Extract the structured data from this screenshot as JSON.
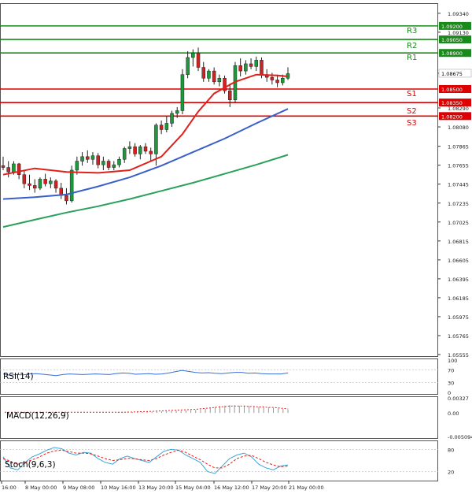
{
  "chart_data": [
    {
      "type": "candlestick",
      "title": "",
      "ylim": [
        1.05555,
        1.094
      ],
      "y_ticks": [
        "1.09340",
        "1.09130",
        "1.08675",
        "1.08290",
        "1.08080",
        "1.07865",
        "1.07655",
        "1.07445",
        "1.07235",
        "1.07025",
        "1.06815",
        "1.06605",
        "1.06395",
        "1.06185",
        "1.05975",
        "1.05765",
        "1.05555"
      ],
      "x_ticks": [
        "16:00",
        "8 May 00:00",
        "9 May 08:00",
        "10 May 16:00",
        "13 May 20:00",
        "15 May 04:00",
        "16 May 12:00",
        "17 May 20:00",
        "21 May 00:00"
      ],
      "levels": [
        {
          "name": "R3",
          "value": 1.092,
          "label": "1.09200",
          "color": "#1a8a1a"
        },
        {
          "name": "R2",
          "value": 1.0905,
          "label": "1.09050",
          "color": "#1a8a1a"
        },
        {
          "name": "R1",
          "value": 1.089,
          "label": "1.08900",
          "color": "#1a8a1a"
        },
        {
          "name": "S1",
          "value": 1.085,
          "label": "1.08500",
          "color": "#dd0000"
        },
        {
          "name": "S2",
          "value": 1.0835,
          "label": "1.08350",
          "color": "#dd0000"
        },
        {
          "name": "S3",
          "value": 1.082,
          "label": "1.08200",
          "color": "#dd0000"
        }
      ],
      "current_price": "1.08675",
      "candles": [
        {
          "o": 1.0765,
          "h": 1.0775,
          "l": 1.076,
          "c": 1.0763
        },
        {
          "o": 1.0763,
          "h": 1.077,
          "l": 1.0752,
          "c": 1.0758
        },
        {
          "o": 1.0758,
          "h": 1.077,
          "l": 1.0755,
          "c": 1.0767
        },
        {
          "o": 1.0767,
          "h": 1.0768,
          "l": 1.075,
          "c": 1.0755
        },
        {
          "o": 1.0755,
          "h": 1.076,
          "l": 1.074,
          "c": 1.0745
        },
        {
          "o": 1.0745,
          "h": 1.0755,
          "l": 1.0738,
          "c": 1.0743
        },
        {
          "o": 1.0743,
          "h": 1.075,
          "l": 1.0735,
          "c": 1.074
        },
        {
          "o": 1.074,
          "h": 1.0752,
          "l": 1.0738,
          "c": 1.075
        },
        {
          "o": 1.075,
          "h": 1.0756,
          "l": 1.0742,
          "c": 1.0745
        },
        {
          "o": 1.0745,
          "h": 1.0752,
          "l": 1.074,
          "c": 1.0748
        },
        {
          "o": 1.0748,
          "h": 1.075,
          "l": 1.0735,
          "c": 1.074
        },
        {
          "o": 1.074,
          "h": 1.0746,
          "l": 1.0728,
          "c": 1.0732
        },
        {
          "o": 1.0732,
          "h": 1.074,
          "l": 1.0722,
          "c": 1.0726
        },
        {
          "o": 1.0726,
          "h": 1.0765,
          "l": 1.0724,
          "c": 1.076
        },
        {
          "o": 1.076,
          "h": 1.0775,
          "l": 1.0755,
          "c": 1.077
        },
        {
          "o": 1.077,
          "h": 1.078,
          "l": 1.0765,
          "c": 1.0775
        },
        {
          "o": 1.0775,
          "h": 1.0782,
          "l": 1.0768,
          "c": 1.0772
        },
        {
          "o": 1.0772,
          "h": 1.078,
          "l": 1.0766,
          "c": 1.0776
        },
        {
          "o": 1.0776,
          "h": 1.0779,
          "l": 1.0762,
          "c": 1.0766
        },
        {
          "o": 1.0766,
          "h": 1.0775,
          "l": 1.076,
          "c": 1.077
        },
        {
          "o": 1.077,
          "h": 1.0772,
          "l": 1.076,
          "c": 1.0763
        },
        {
          "o": 1.0763,
          "h": 1.077,
          "l": 1.076,
          "c": 1.0766
        },
        {
          "o": 1.0766,
          "h": 1.0775,
          "l": 1.0763,
          "c": 1.0772
        },
        {
          "o": 1.0772,
          "h": 1.0786,
          "l": 1.0768,
          "c": 1.0784
        },
        {
          "o": 1.0784,
          "h": 1.0792,
          "l": 1.0778,
          "c": 1.0786
        },
        {
          "o": 1.0786,
          "h": 1.079,
          "l": 1.0775,
          "c": 1.0778
        },
        {
          "o": 1.0778,
          "h": 1.0788,
          "l": 1.0772,
          "c": 1.0786
        },
        {
          "o": 1.0786,
          "h": 1.079,
          "l": 1.0778,
          "c": 1.0781
        },
        {
          "o": 1.0781,
          "h": 1.0785,
          "l": 1.077,
          "c": 1.0778
        },
        {
          "o": 1.0778,
          "h": 1.0812,
          "l": 1.0765,
          "c": 1.081
        },
        {
          "o": 1.081,
          "h": 1.0815,
          "l": 1.08,
          "c": 1.0805
        },
        {
          "o": 1.0805,
          "h": 1.082,
          "l": 1.0802,
          "c": 1.0812
        },
        {
          "o": 1.0812,
          "h": 1.0826,
          "l": 1.0808,
          "c": 1.0823
        },
        {
          "o": 1.0823,
          "h": 1.083,
          "l": 1.0818,
          "c": 1.0826
        },
        {
          "o": 1.0826,
          "h": 1.0872,
          "l": 1.0822,
          "c": 1.0866
        },
        {
          "o": 1.0866,
          "h": 1.0892,
          "l": 1.0862,
          "c": 1.0885
        },
        {
          "o": 1.0885,
          "h": 1.0894,
          "l": 1.0875,
          "c": 1.089
        },
        {
          "o": 1.089,
          "h": 1.0896,
          "l": 1.087,
          "c": 1.0874
        },
        {
          "o": 1.0874,
          "h": 1.088,
          "l": 1.0858,
          "c": 1.0862
        },
        {
          "o": 1.0862,
          "h": 1.0872,
          "l": 1.0858,
          "c": 1.087
        },
        {
          "o": 1.087,
          "h": 1.0874,
          "l": 1.0855,
          "c": 1.0858
        },
        {
          "o": 1.0858,
          "h": 1.0866,
          "l": 1.0853,
          "c": 1.0862
        },
        {
          "o": 1.0862,
          "h": 1.0865,
          "l": 1.0845,
          "c": 1.0848
        },
        {
          "o": 1.0848,
          "h": 1.0856,
          "l": 1.083,
          "c": 1.0838
        },
        {
          "o": 1.0838,
          "h": 1.088,
          "l": 1.0835,
          "c": 1.0876
        },
        {
          "o": 1.0876,
          "h": 1.0884,
          "l": 1.0864,
          "c": 1.087
        },
        {
          "o": 1.087,
          "h": 1.0882,
          "l": 1.0866,
          "c": 1.0878
        },
        {
          "o": 1.0878,
          "h": 1.0884,
          "l": 1.0872,
          "c": 1.0875
        },
        {
          "o": 1.0875,
          "h": 1.0886,
          "l": 1.087,
          "c": 1.0882
        },
        {
          "o": 1.0882,
          "h": 1.0885,
          "l": 1.0862,
          "c": 1.0866
        },
        {
          "o": 1.0866,
          "h": 1.0872,
          "l": 1.0858,
          "c": 1.0863
        },
        {
          "o": 1.0863,
          "h": 1.0868,
          "l": 1.0855,
          "c": 1.086
        },
        {
          "o": 1.086,
          "h": 1.0866,
          "l": 1.0852,
          "c": 1.0857
        },
        {
          "o": 1.0857,
          "h": 1.0866,
          "l": 1.0854,
          "c": 1.0862
        },
        {
          "o": 1.0862,
          "h": 1.0874,
          "l": 1.086,
          "c": 1.0867
        }
      ],
      "moving_averages": [
        {
          "color": "#e0201a",
          "points": [
            [
              0,
              1.0755
            ],
            [
              6,
              1.0762
            ],
            [
              12,
              1.0758
            ],
            [
              18,
              1.0757
            ],
            [
              24,
              1.076
            ],
            [
              30,
              1.0775
            ],
            [
              34,
              1.08
            ],
            [
              37,
              1.0825
            ],
            [
              40,
              1.0845
            ],
            [
              44,
              1.0858
            ],
            [
              48,
              1.0866
            ],
            [
              52,
              1.0865
            ],
            [
              54,
              1.0864
            ]
          ]
        },
        {
          "color": "#3a5fcd",
          "points": [
            [
              0,
              1.0728
            ],
            [
              6,
              1.073
            ],
            [
              12,
              1.0733
            ],
            [
              18,
              1.0742
            ],
            [
              24,
              1.0752
            ],
            [
              30,
              1.0765
            ],
            [
              36,
              1.078
            ],
            [
              42,
              1.0795
            ],
            [
              48,
              1.0812
            ],
            [
              54,
              1.0828
            ]
          ]
        },
        {
          "color": "#2aa05a",
          "points": [
            [
              0,
              1.0697
            ],
            [
              6,
              1.0705
            ],
            [
              12,
              1.0713
            ],
            [
              18,
              1.072
            ],
            [
              24,
              1.0728
            ],
            [
              30,
              1.0737
            ],
            [
              36,
              1.0746
            ],
            [
              42,
              1.0756
            ],
            [
              48,
              1.0766
            ],
            [
              54,
              1.0777
            ]
          ]
        }
      ]
    },
    {
      "type": "line",
      "title": "RSI(14)",
      "ylim": [
        0,
        100
      ],
      "y_ticks": [
        "100",
        "70",
        "30",
        "0"
      ],
      "values": [
        57,
        53,
        55,
        54,
        57,
        58,
        56,
        54,
        52,
        55,
        57,
        56,
        55,
        56,
        57,
        56,
        55,
        58,
        60,
        59,
        56,
        57,
        58,
        56,
        57,
        60,
        64,
        68,
        65,
        62,
        60,
        61,
        59,
        58,
        60,
        62,
        62,
        59,
        60,
        58,
        57,
        57,
        57,
        60
      ]
    },
    {
      "type": "bar",
      "title": "MACD(12,26,9)",
      "ylim": [
        -0.005094,
        0.00327
      ],
      "y_ticks": [
        "0.00327",
        "0.00",
        "-0.005094"
      ],
      "values": [
        0.0001,
        0.0001,
        0.0001,
        0.00015,
        0.0002,
        0.0002,
        0.00025,
        0.0003,
        0.0003,
        0.00035,
        0.0004,
        0.00045,
        0.0005,
        0.0005,
        0.00055,
        0.0006,
        0.00065,
        0.0007,
        0.0009,
        0.0011,
        0.0013,
        0.0015,
        0.0016,
        0.0017,
        0.0017,
        0.0016,
        0.0016,
        0.0015,
        0.0014,
        0.0013,
        0.0012,
        0.0012,
        0.0011,
        0.001,
        0.0009,
        0.0008
      ],
      "signal": [
        0.00015,
        0.00015,
        0.0002,
        0.0002,
        0.00025,
        0.0003,
        0.0003,
        0.00035,
        0.0004,
        0.00045,
        0.0005,
        0.00055,
        0.0006,
        0.00065,
        0.0007,
        0.00075,
        0.0008,
        0.0009,
        0.001,
        0.0011,
        0.0012,
        0.0013,
        0.0014,
        0.0015,
        0.0015,
        0.0015,
        0.0015,
        0.0014,
        0.0014,
        0.0013,
        0.0013,
        0.0012,
        0.0012,
        0.0011,
        0.001,
        0.0009
      ]
    },
    {
      "type": "line",
      "title": "Stoch(9,6,3)",
      "ylim": [
        0,
        100
      ],
      "y_ticks": [
        "80",
        "20"
      ],
      "k": [
        60,
        30,
        25,
        45,
        60,
        68,
        78,
        85,
        82,
        70,
        65,
        72,
        70,
        55,
        45,
        40,
        55,
        62,
        55,
        50,
        45,
        60,
        75,
        80,
        78,
        65,
        55,
        45,
        20,
        15,
        35,
        55,
        65,
        70,
        60,
        40,
        30,
        25,
        35,
        38
      ],
      "d": [
        55,
        48,
        40,
        45,
        52,
        60,
        70,
        76,
        78,
        74,
        70,
        70,
        68,
        62,
        55,
        50,
        52,
        56,
        55,
        52,
        50,
        55,
        65,
        72,
        78,
        72,
        62,
        52,
        40,
        30,
        30,
        40,
        55,
        62,
        64,
        55,
        45,
        38,
        33,
        35
      ]
    }
  ]
}
